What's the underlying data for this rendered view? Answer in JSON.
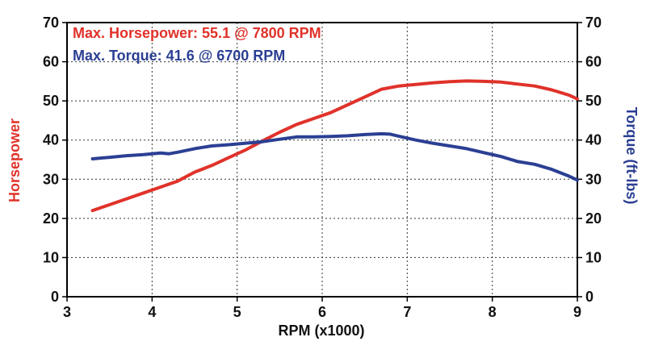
{
  "chart_data": {
    "type": "line",
    "annotations": [
      {
        "text": "Max. Horsepower: 55.1 @ 7800 RPM",
        "color": "#e0322a"
      },
      {
        "text": "Max. Torque: 41.6 @ 6700 RPM",
        "color": "#2b3f93"
      }
    ],
    "xlabel": "RPM (x1000)",
    "ylabel_left": "Horsepower",
    "ylabel_right": "Torque (ft-lbs)",
    "xlim": [
      3,
      9
    ],
    "ylim": [
      0,
      70
    ],
    "x_ticks": [
      "3",
      "4",
      "5",
      "6",
      "7",
      "8",
      "9"
    ],
    "y_ticks_left": [
      "0",
      "10",
      "20",
      "30",
      "40",
      "50",
      "60",
      "70"
    ],
    "y_ticks_right": [
      "0",
      "10",
      "20",
      "30",
      "40",
      "50",
      "60",
      "70"
    ],
    "grid": true,
    "series": [
      {
        "name": "Horsepower",
        "axis": "left",
        "color": "#e0322a",
        "x": [
          3.3,
          3.5,
          3.7,
          3.9,
          4.1,
          4.3,
          4.5,
          4.7,
          4.9,
          5.1,
          5.3,
          5.5,
          5.7,
          5.9,
          6.1,
          6.3,
          6.5,
          6.7,
          6.9,
          7.1,
          7.3,
          7.5,
          7.7,
          7.9,
          8.1,
          8.3,
          8.5,
          8.7,
          8.9,
          9.0
        ],
        "y": [
          22.0,
          23.5,
          25.0,
          26.5,
          28.0,
          29.5,
          31.8,
          33.5,
          35.5,
          37.5,
          39.8,
          42.0,
          44.0,
          45.5,
          47.0,
          49.0,
          51.0,
          53.0,
          53.8,
          54.2,
          54.6,
          54.9,
          55.1,
          55.0,
          54.8,
          54.3,
          53.8,
          52.8,
          51.5,
          50.5
        ]
      },
      {
        "name": "Torque",
        "axis": "right",
        "color": "#2b3f93",
        "x": [
          3.3,
          3.5,
          3.7,
          3.9,
          4.0,
          4.1,
          4.2,
          4.3,
          4.5,
          4.7,
          4.9,
          5.1,
          5.3,
          5.5,
          5.7,
          5.9,
          6.1,
          6.3,
          6.5,
          6.7,
          6.8,
          6.9,
          7.1,
          7.3,
          7.5,
          7.7,
          7.9,
          8.1,
          8.3,
          8.5,
          8.7,
          8.9,
          9.0
        ],
        "y": [
          35.2,
          35.6,
          36.0,
          36.3,
          36.5,
          36.7,
          36.5,
          36.9,
          37.8,
          38.5,
          38.8,
          39.2,
          39.6,
          40.2,
          40.8,
          40.8,
          40.9,
          41.1,
          41.4,
          41.6,
          41.5,
          41.0,
          40.0,
          39.2,
          38.5,
          37.8,
          36.8,
          35.8,
          34.5,
          33.8,
          32.5,
          30.8,
          29.8
        ]
      }
    ]
  }
}
